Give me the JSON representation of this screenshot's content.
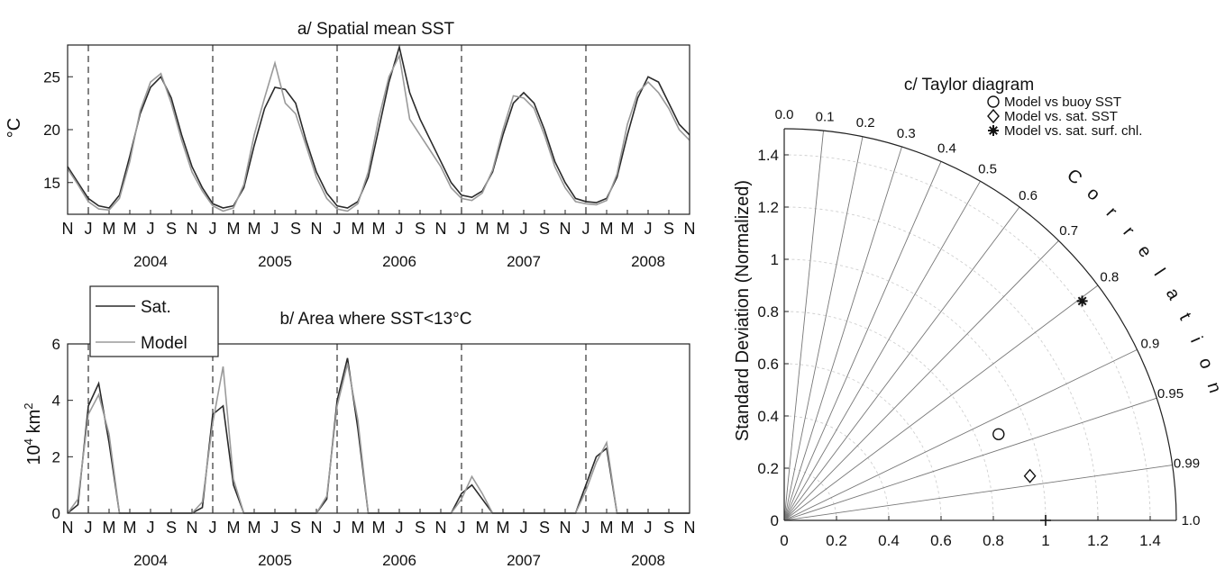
{
  "chart_data": [
    {
      "type": "line",
      "title": "a/ Spatial mean SST",
      "ylabel": "°C",
      "xlabel": "",
      "ylim": [
        12,
        28
      ],
      "yticks": [
        15,
        20,
        25
      ],
      "month_labels": [
        "N",
        "J",
        "M",
        "M",
        "J",
        "S",
        "N",
        "J",
        "M",
        "M",
        "J",
        "S",
        "N",
        "J",
        "M",
        "M",
        "J",
        "S",
        "N",
        "J",
        "M",
        "M",
        "J",
        "S",
        "N",
        "J",
        "M",
        "M",
        "J",
        "S",
        "N"
      ],
      "year_labels": [
        "2004",
        "2005",
        "2006",
        "2007",
        "2008"
      ],
      "series": [
        {
          "name": "Sat.",
          "x": [
            "2003-11",
            "2003-12",
            "2004-01",
            "2004-02",
            "2004-03",
            "2004-04",
            "2004-05",
            "2004-06",
            "2004-07",
            "2004-08",
            "2004-09",
            "2004-10",
            "2004-11",
            "2004-12",
            "2005-01",
            "2005-02",
            "2005-03",
            "2005-04",
            "2005-05",
            "2005-06",
            "2005-07",
            "2005-08",
            "2005-09",
            "2005-10",
            "2005-11",
            "2005-12",
            "2006-01",
            "2006-02",
            "2006-03",
            "2006-04",
            "2006-05",
            "2006-06",
            "2006-07",
            "2006-08",
            "2006-09",
            "2006-10",
            "2006-11",
            "2006-12",
            "2007-01",
            "2007-02",
            "2007-03",
            "2007-04",
            "2007-05",
            "2007-06",
            "2007-07",
            "2007-08",
            "2007-09",
            "2007-10",
            "2007-11",
            "2007-12",
            "2008-01",
            "2008-02",
            "2008-03",
            "2008-04",
            "2008-05",
            "2008-06",
            "2008-07",
            "2008-08",
            "2008-09",
            "2008-10",
            "2008-11"
          ],
          "values": [
            16.5,
            15.0,
            13.5,
            12.8,
            12.6,
            13.8,
            17.5,
            21.5,
            24.0,
            25.0,
            23.0,
            19.5,
            16.5,
            14.5,
            13.0,
            12.6,
            12.8,
            14.5,
            18.5,
            22.0,
            24.0,
            23.8,
            22.5,
            19.0,
            16.0,
            14.0,
            12.8,
            12.6,
            13.2,
            15.5,
            20.0,
            24.5,
            27.8,
            23.5,
            21.0,
            19.0,
            17.0,
            15.0,
            13.8,
            13.6,
            14.2,
            16.0,
            19.5,
            22.5,
            23.5,
            22.5,
            20.0,
            17.0,
            15.0,
            13.5,
            13.2,
            13.1,
            13.5,
            15.5,
            19.5,
            23.0,
            25.0,
            24.5,
            22.5,
            20.5,
            19.5
          ]
        },
        {
          "name": "Model",
          "x": [
            "2003-11",
            "2003-12",
            "2004-01",
            "2004-02",
            "2004-03",
            "2004-04",
            "2004-05",
            "2004-06",
            "2004-07",
            "2004-08",
            "2004-09",
            "2004-10",
            "2004-11",
            "2004-12",
            "2005-01",
            "2005-02",
            "2005-03",
            "2005-04",
            "2005-05",
            "2005-06",
            "2005-07",
            "2005-08",
            "2005-09",
            "2005-10",
            "2005-11",
            "2005-12",
            "2006-01",
            "2006-02",
            "2006-03",
            "2006-04",
            "2006-05",
            "2006-06",
            "2006-07",
            "2006-08",
            "2006-09",
            "2006-10",
            "2006-11",
            "2006-12",
            "2007-01",
            "2007-02",
            "2007-03",
            "2007-04",
            "2007-05",
            "2007-06",
            "2007-07",
            "2007-08",
            "2007-09",
            "2007-10",
            "2007-11",
            "2007-12",
            "2008-01",
            "2008-02",
            "2008-03",
            "2008-04",
            "2008-05",
            "2008-06",
            "2008-07",
            "2008-08",
            "2008-09",
            "2008-10",
            "2008-11"
          ],
          "values": [
            16.3,
            14.8,
            13.2,
            12.5,
            12.4,
            13.5,
            17.0,
            21.8,
            24.5,
            25.3,
            22.5,
            19.0,
            16.0,
            14.2,
            12.8,
            12.3,
            12.6,
            14.8,
            19.5,
            23.0,
            26.3,
            22.5,
            21.5,
            18.5,
            15.5,
            13.5,
            12.5,
            12.3,
            13.0,
            16.0,
            21.0,
            25.0,
            27.0,
            21.0,
            19.5,
            18.0,
            16.5,
            14.5,
            13.5,
            13.3,
            14.0,
            16.2,
            20.0,
            23.2,
            23.0,
            22.0,
            19.5,
            16.5,
            14.5,
            13.2,
            13.0,
            12.9,
            13.3,
            15.8,
            20.5,
            23.5,
            24.5,
            23.5,
            22.0,
            20.0,
            19.0
          ]
        }
      ]
    },
    {
      "type": "line",
      "title": "b/ Area where SST<13°C",
      "ylabel": "10",
      "ylabel_exp": "4",
      "ylabel_unit": " km",
      "ylabel_unit_exp": "2",
      "xlabel": "",
      "ylim": [
        0,
        6
      ],
      "yticks": [
        0,
        2,
        4,
        6
      ],
      "month_labels": [
        "N",
        "J",
        "M",
        "M",
        "J",
        "S",
        "N",
        "J",
        "M",
        "M",
        "J",
        "S",
        "N",
        "J",
        "M",
        "M",
        "J",
        "S",
        "N",
        "J",
        "M",
        "M",
        "J",
        "S",
        "N",
        "J",
        "M",
        "M",
        "J",
        "S",
        "N"
      ],
      "year_labels": [
        "2004",
        "2005",
        "2006",
        "2007",
        "2008"
      ],
      "legend": {
        "position": "top-left",
        "entries": [
          "Sat.",
          "Model"
        ]
      },
      "series": [
        {
          "name": "Sat.",
          "x": [
            "2003-11",
            "2003-12",
            "2004-01",
            "2004-02",
            "2004-03",
            "2004-04",
            "2004-05",
            "2004-06",
            "2004-07",
            "2004-08",
            "2004-09",
            "2004-10",
            "2004-11",
            "2004-12",
            "2005-01",
            "2005-02",
            "2005-03",
            "2005-04",
            "2005-05",
            "2005-06",
            "2005-07",
            "2005-08",
            "2005-09",
            "2005-10",
            "2005-11",
            "2005-12",
            "2006-01",
            "2006-02",
            "2006-03",
            "2006-04",
            "2006-05",
            "2006-06",
            "2006-07",
            "2006-08",
            "2006-09",
            "2006-10",
            "2006-11",
            "2006-12",
            "2007-01",
            "2007-02",
            "2007-03",
            "2007-04",
            "2007-05",
            "2007-06",
            "2007-07",
            "2007-08",
            "2007-09",
            "2007-10",
            "2007-11",
            "2007-12",
            "2008-01",
            "2008-02",
            "2008-03",
            "2008-04",
            "2008-05",
            "2008-06",
            "2008-07",
            "2008-08",
            "2008-09",
            "2008-10",
            "2008-11"
          ],
          "values": [
            0,
            0.3,
            3.8,
            4.6,
            2.5,
            0,
            0,
            0,
            0,
            0,
            0,
            0,
            0,
            0.2,
            3.5,
            3.8,
            1.0,
            0,
            0,
            0,
            0,
            0,
            0,
            0,
            0,
            0.5,
            4.0,
            5.5,
            3.0,
            0,
            0,
            0,
            0,
            0,
            0,
            0,
            0,
            0,
            0.7,
            1.0,
            0.5,
            0,
            0,
            0,
            0,
            0,
            0,
            0,
            0,
            0,
            1.0,
            2.0,
            2.3,
            0,
            0,
            0,
            0,
            0,
            0,
            0,
            0
          ]
        },
        {
          "name": "Model",
          "x": [
            "2003-11",
            "2003-12",
            "2004-01",
            "2004-02",
            "2004-03",
            "2004-04",
            "2004-05",
            "2004-06",
            "2004-07",
            "2004-08",
            "2004-09",
            "2004-10",
            "2004-11",
            "2004-12",
            "2005-01",
            "2005-02",
            "2005-03",
            "2005-04",
            "2005-05",
            "2005-06",
            "2005-07",
            "2005-08",
            "2005-09",
            "2005-10",
            "2005-11",
            "2005-12",
            "2006-01",
            "2006-02",
            "2006-03",
            "2006-04",
            "2006-05",
            "2006-06",
            "2006-07",
            "2006-08",
            "2006-09",
            "2006-10",
            "2006-11",
            "2006-12",
            "2007-01",
            "2007-02",
            "2007-03",
            "2007-04",
            "2007-05",
            "2007-06",
            "2007-07",
            "2007-08",
            "2007-09",
            "2007-10",
            "2007-11",
            "2007-12",
            "2008-01",
            "2008-02",
            "2008-03",
            "2008-04",
            "2008-05",
            "2008-06",
            "2008-07",
            "2008-08",
            "2008-09",
            "2008-10",
            "2008-11"
          ],
          "values": [
            0,
            0.5,
            3.5,
            4.2,
            2.8,
            0,
            0,
            0,
            0,
            0,
            0,
            0,
            0,
            0.4,
            3.2,
            5.2,
            1.2,
            0,
            0,
            0,
            0,
            0,
            0,
            0,
            0,
            0.6,
            3.8,
            5.3,
            3.3,
            0,
            0,
            0,
            0,
            0,
            0,
            0,
            0,
            0,
            0.5,
            1.3,
            0.7,
            0,
            0,
            0,
            0,
            0,
            0,
            0,
            0,
            0,
            0.8,
            1.8,
            2.5,
            0,
            0,
            0,
            0,
            0,
            0,
            0,
            0
          ]
        }
      ]
    },
    {
      "type": "scatter",
      "subtype": "taylor",
      "title": "c/ Taylor diagram",
      "ylabel": "Standard Deviation (Normalized)",
      "xlabel": "",
      "corr_label": "Correlation",
      "rlim": [
        0,
        1.5
      ],
      "x_ticks": [
        "0",
        "0.2",
        "0.4",
        "0.6",
        "0.8",
        "1",
        "1.2",
        "1.4"
      ],
      "y_ticks": [
        "0",
        "0.2",
        "0.4",
        "0.6",
        "0.8",
        "1",
        "1.2",
        "1.4"
      ],
      "corr_ticks": [
        {
          "r": 0.0,
          "label": "0.0"
        },
        {
          "r": 0.1,
          "label": "0.1"
        },
        {
          "r": 0.2,
          "label": "0.2"
        },
        {
          "r": 0.3,
          "label": "0.3"
        },
        {
          "r": 0.4,
          "label": "0.4"
        },
        {
          "r": 0.5,
          "label": "0.5"
        },
        {
          "r": 0.6,
          "label": "0.6"
        },
        {
          "r": 0.7,
          "label": "0.7"
        },
        {
          "r": 0.8,
          "label": "0.8"
        },
        {
          "r": 0.9,
          "label": "0.9"
        },
        {
          "r": 0.95,
          "label": "0.95"
        },
        {
          "r": 0.99,
          "label": "0.99"
        },
        {
          "r": 1.0,
          "label": "1.0"
        }
      ],
      "reference_point": {
        "x": 1.0,
        "y": 0.0
      },
      "legend": {
        "position": "top-right"
      },
      "points": [
        {
          "name": "Model vs buoy SST",
          "marker": "circle",
          "x": 0.82,
          "y": 0.33
        },
        {
          "name": "Model vs. sat. SST",
          "marker": "diamond",
          "x": 0.94,
          "y": 0.17
        },
        {
          "name": "Model vs. sat. surf. chl.",
          "marker": "star",
          "x": 1.14,
          "y": 0.84
        }
      ]
    }
  ]
}
